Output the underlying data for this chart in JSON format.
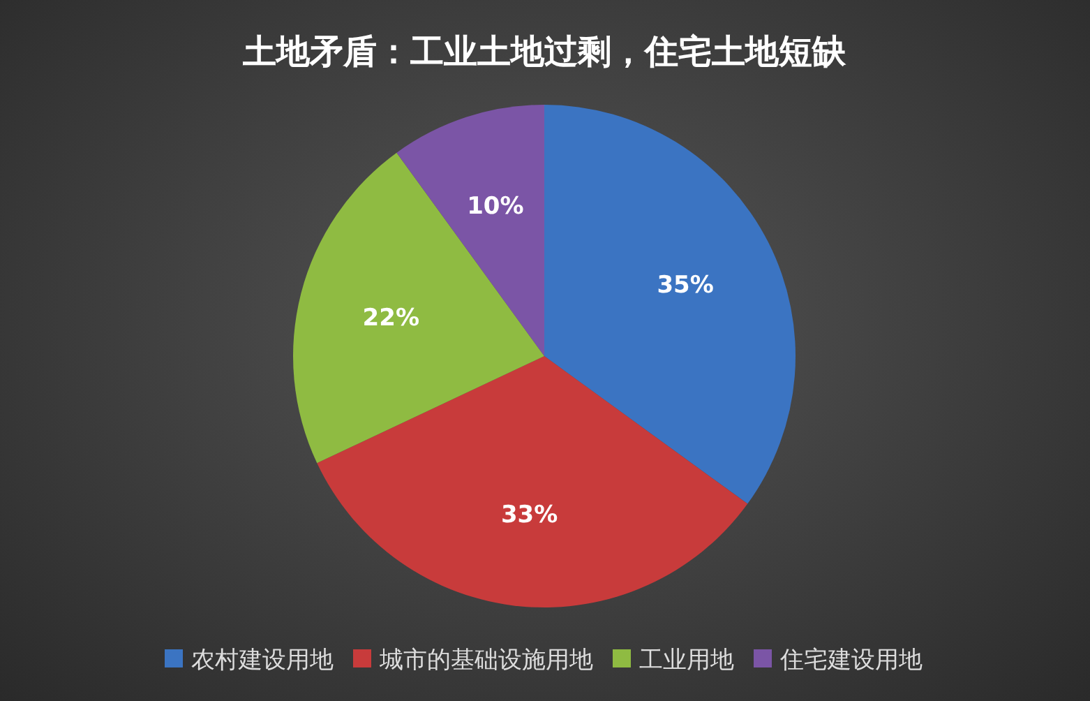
{
  "chart_data": {
    "type": "pie",
    "title": "土地矛盾：工业土地过剩，住宅土地短缺",
    "categories": [
      "农村建设用地",
      "城市的基础设施用地",
      "工业用地",
      "住宅建设用地"
    ],
    "values": [
      35,
      33,
      22,
      10
    ],
    "colors": [
      "#3b74c2",
      "#c83b3b",
      "#8fbb42",
      "#7b55a6"
    ],
    "value_labels": [
      "35%",
      "33%",
      "22%",
      "10%"
    ],
    "legend": "bottom"
  }
}
